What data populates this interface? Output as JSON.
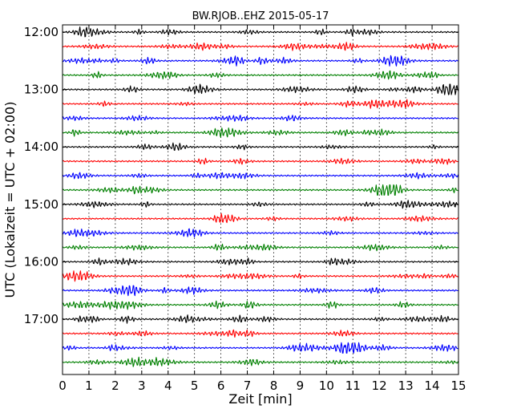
{
  "chart_data": {
    "type": "line",
    "title": "BW.RJOB..EHZ 2015-05-17",
    "xlabel": "Zeit  [min]",
    "ylabel": "UTC (Lokalzeit = UTC + 02:00)",
    "xlim": [
      0,
      15
    ],
    "x_ticks": [
      "0",
      "1",
      "2",
      "3",
      "4",
      "5",
      "6",
      "7",
      "8",
      "9",
      "10",
      "11",
      "12",
      "13",
      "14",
      "15"
    ],
    "y_ticks": [
      "12:00",
      "13:00",
      "14:00",
      "15:00",
      "16:00",
      "17:00"
    ],
    "trace_colors": [
      "#000000",
      "#ff0000",
      "#0000ff",
      "#008000"
    ],
    "x_grid": "dotted vertical lines at each minute",
    "traces": [
      {
        "start": "12:00"
      },
      {
        "start": "12:15"
      },
      {
        "start": "12:30"
      },
      {
        "start": "12:45"
      },
      {
        "start": "13:00"
      },
      {
        "start": "13:15"
      },
      {
        "start": "13:30"
      },
      {
        "start": "13:45"
      },
      {
        "start": "14:00"
      },
      {
        "start": "14:15"
      },
      {
        "start": "14:30"
      },
      {
        "start": "14:45"
      },
      {
        "start": "15:00"
      },
      {
        "start": "15:15"
      },
      {
        "start": "15:30"
      },
      {
        "start": "15:45"
      },
      {
        "start": "16:00"
      },
      {
        "start": "16:15"
      },
      {
        "start": "16:30"
      },
      {
        "start": "16:45"
      },
      {
        "start": "17:00"
      },
      {
        "start": "17:15"
      },
      {
        "start": "17:30"
      },
      {
        "start": "17:45"
      }
    ]
  }
}
